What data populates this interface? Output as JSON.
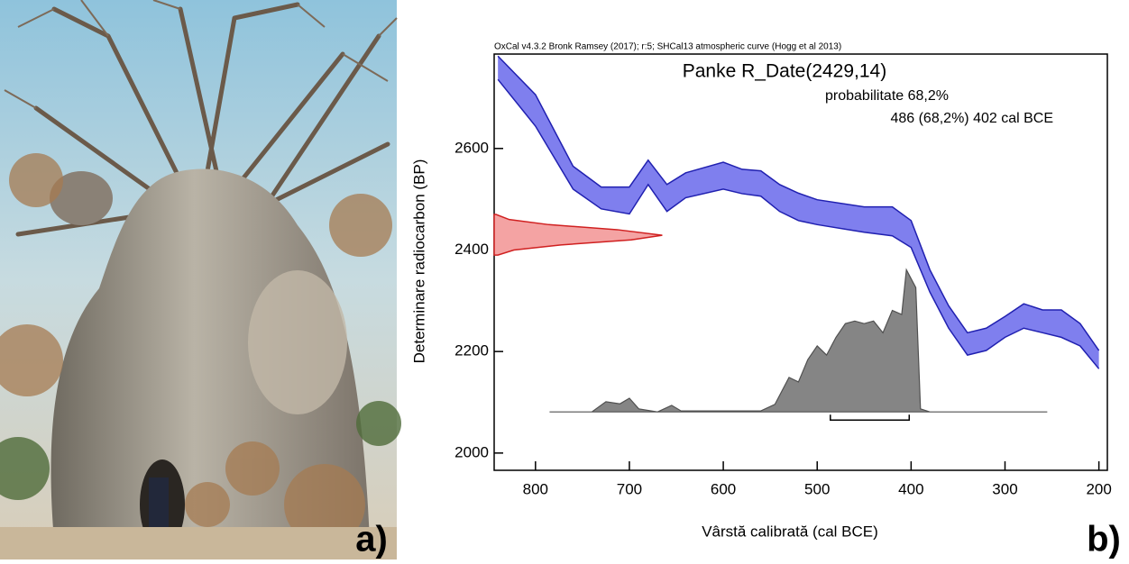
{
  "panel_labels": [
    "a)",
    "b)"
  ],
  "chart_data": {
    "type": "oxcal",
    "header": "OxCal v4.3.2 Bronk Ramsey (2017); r:5; SHCal13 atmospheric curve (Hogg et al 2013)",
    "title": "Panke R_Date(2429,14)",
    "annotations": [
      "probabilitate 68,2%",
      "486 (68,2%) 402 cal BCE"
    ],
    "x_label": "Vârstă calibrată (cal BCE)",
    "y_label": "Determinare radiocarbon (BP)",
    "xlim": [
      844,
      191
    ],
    "ylim": [
      1966,
      2786
    ],
    "xticks": [
      800,
      700,
      600,
      500,
      400,
      300,
      200
    ],
    "yticks": [
      2000,
      2200,
      2400,
      2600
    ],
    "calibration_curve": {
      "color": "#7f7fee",
      "line_color": "#2020b0",
      "x": [
        840,
        800,
        760,
        730,
        700,
        680,
        660,
        640,
        600,
        580,
        560,
        540,
        520,
        500,
        450,
        420,
        400,
        380,
        360,
        340,
        320,
        300,
        280,
        260,
        240,
        220,
        200
      ],
      "upper": [
        2782,
        2706,
        2565,
        2524,
        2524,
        2577,
        2529,
        2552,
        2573,
        2559,
        2556,
        2529,
        2512,
        2499,
        2485,
        2485,
        2458,
        2361,
        2290,
        2237,
        2246,
        2269,
        2294,
        2282,
        2282,
        2255,
        2202
      ],
      "lower": [
        2736,
        2644,
        2520,
        2481,
        2471,
        2529,
        2476,
        2503,
        2520,
        2511,
        2506,
        2476,
        2458,
        2450,
        2435,
        2428,
        2405,
        2317,
        2246,
        2193,
        2202,
        2228,
        2246,
        2237,
        2228,
        2211,
        2166
      ]
    },
    "likelihood": {
      "color": "#f4a3a3",
      "line_color": "#d02020",
      "y": [
        2470,
        2460,
        2450,
        2440,
        2429,
        2420,
        2410,
        2400,
        2390
      ],
      "x": [
        842,
        828,
        786,
        713,
        665,
        698,
        773,
        823,
        840
      ]
    },
    "posterior": {
      "color": "#858585",
      "line_color": "#505050",
      "x": [
        785,
        740,
        725,
        710,
        700,
        690,
        670,
        655,
        645,
        560,
        545,
        530,
        520,
        510,
        500,
        490,
        480,
        470,
        460,
        450,
        440,
        430,
        420,
        410,
        405,
        395,
        390,
        380,
        255
      ],
      "values": [
        2081,
        2081,
        2101,
        2097,
        2108,
        2087,
        2081,
        2094,
        2083,
        2083,
        2096,
        2149,
        2140,
        2184,
        2211,
        2193,
        2228,
        2255,
        2260,
        2255,
        2260,
        2237,
        2281,
        2273,
        2361,
        2326,
        2087,
        2081,
        2081
      ]
    },
    "range": [
      486,
      402
    ]
  }
}
